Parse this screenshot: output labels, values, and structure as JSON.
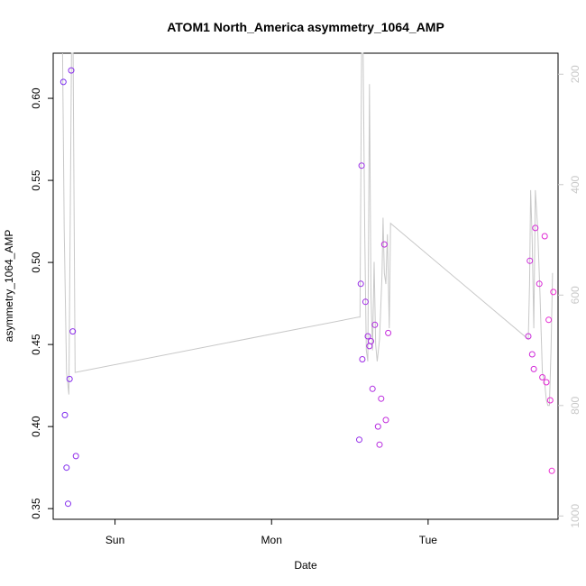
{
  "chart_data": {
    "type": "scatter",
    "title": "ATOM1 North_America asymmetry_1064_AMP",
    "xlabel": "Date",
    "ylabel": "asymmetry_1064_AMP",
    "xlim": [
      -0.395,
      2.83
    ],
    "ylim": [
      0.3435,
      0.6275
    ],
    "x_ticks": [
      {
        "value": 0,
        "label": "Sun"
      },
      {
        "value": 1,
        "label": "Mon"
      },
      {
        "value": 2,
        "label": "Tue"
      }
    ],
    "y_ticks": [
      0.35,
      0.4,
      0.45,
      0.5,
      0.55,
      0.6
    ],
    "y_tick_labels": [
      "0.35",
      "0.40",
      "0.45",
      "0.50",
      "0.55",
      "0.60"
    ],
    "y2_ticks": [
      200,
      400,
      600,
      800,
      1000
    ],
    "y2_tick_labels": [
      "200",
      "400",
      "600",
      "800",
      "1000"
    ],
    "y2_lim": [
      1006,
      162
    ],
    "grid": false,
    "point_color_start": "#7a2df0",
    "point_color_end": "#f02ad0",
    "line_color": "#c8c8c8",
    "series": [
      {
        "marker": "circle",
        "points": [
          {
            "x": -0.33,
            "y": 0.61
          },
          {
            "x": -0.32,
            "y": 0.407
          },
          {
            "x": -0.31,
            "y": 0.375
          },
          {
            "x": -0.3,
            "y": 0.353
          },
          {
            "x": -0.29,
            "y": 0.429
          },
          {
            "x": -0.28,
            "y": 0.617
          },
          {
            "x": -0.27,
            "y": 0.458
          },
          {
            "x": -0.25,
            "y": 0.382
          },
          {
            "x": 1.56,
            "y": 0.392
          },
          {
            "x": 1.57,
            "y": 0.487
          },
          {
            "x": 1.575,
            "y": 0.559
          },
          {
            "x": 1.58,
            "y": 0.441
          },
          {
            "x": 1.6,
            "y": 0.476
          },
          {
            "x": 1.615,
            "y": 0.455
          },
          {
            "x": 1.625,
            "y": 0.449
          },
          {
            "x": 1.635,
            "y": 0.452
          },
          {
            "x": 1.645,
            "y": 0.423
          },
          {
            "x": 1.66,
            "y": 0.462
          },
          {
            "x": 1.68,
            "y": 0.4
          },
          {
            "x": 1.69,
            "y": 0.389
          },
          {
            "x": 1.7,
            "y": 0.417
          },
          {
            "x": 1.72,
            "y": 0.511
          },
          {
            "x": 1.73,
            "y": 0.404
          },
          {
            "x": 1.745,
            "y": 0.457
          },
          {
            "x": 2.64,
            "y": 0.455
          },
          {
            "x": 2.65,
            "y": 0.501
          },
          {
            "x": 2.665,
            "y": 0.444
          },
          {
            "x": 2.675,
            "y": 0.435
          },
          {
            "x": 2.685,
            "y": 0.521
          },
          {
            "x": 2.71,
            "y": 0.487
          },
          {
            "x": 2.73,
            "y": 0.43
          },
          {
            "x": 2.745,
            "y": 0.516
          },
          {
            "x": 2.755,
            "y": 0.427
          },
          {
            "x": 2.77,
            "y": 0.465
          },
          {
            "x": 2.78,
            "y": 0.416
          },
          {
            "x": 2.79,
            "y": 0.373
          },
          {
            "x": 2.8,
            "y": 0.482
          }
        ]
      },
      {
        "type": "line",
        "axis": "right",
        "points": [
          {
            "x": -0.335,
            "y": 162
          },
          {
            "x": -0.325,
            "y": 480
          },
          {
            "x": -0.31,
            "y": 740
          },
          {
            "x": -0.295,
            "y": 780
          },
          {
            "x": -0.285,
            "y": 420
          },
          {
            "x": -0.278,
            "y": 162
          },
          {
            "x": -0.268,
            "y": 162
          },
          {
            "x": -0.255,
            "y": 740
          },
          {
            "x": 1.555,
            "y": 640
          },
          {
            "x": 1.565,
            "y": 640
          },
          {
            "x": 1.575,
            "y": 162
          },
          {
            "x": 1.585,
            "y": 162
          },
          {
            "x": 1.595,
            "y": 490
          },
          {
            "x": 1.605,
            "y": 700
          },
          {
            "x": 1.615,
            "y": 720
          },
          {
            "x": 1.625,
            "y": 218
          },
          {
            "x": 1.635,
            "y": 600
          },
          {
            "x": 1.645,
            "y": 700
          },
          {
            "x": 1.655,
            "y": 540
          },
          {
            "x": 1.665,
            "y": 690
          },
          {
            "x": 1.675,
            "y": 720
          },
          {
            "x": 1.69,
            "y": 680
          },
          {
            "x": 1.705,
            "y": 565
          },
          {
            "x": 1.712,
            "y": 460
          },
          {
            "x": 1.72,
            "y": 560
          },
          {
            "x": 1.73,
            "y": 580
          },
          {
            "x": 1.74,
            "y": 490
          },
          {
            "x": 1.752,
            "y": 660
          },
          {
            "x": 1.76,
            "y": 470
          },
          {
            "x": 2.64,
            "y": 680
          },
          {
            "x": 2.648,
            "y": 580
          },
          {
            "x": 2.655,
            "y": 410
          },
          {
            "x": 2.665,
            "y": 500
          },
          {
            "x": 2.675,
            "y": 660
          },
          {
            "x": 2.685,
            "y": 410
          },
          {
            "x": 2.7,
            "y": 480
          },
          {
            "x": 2.715,
            "y": 600
          },
          {
            "x": 2.73,
            "y": 740
          },
          {
            "x": 2.745,
            "y": 760
          },
          {
            "x": 2.755,
            "y": 790
          },
          {
            "x": 2.765,
            "y": 800
          },
          {
            "x": 2.775,
            "y": 800
          },
          {
            "x": 2.785,
            "y": 700
          },
          {
            "x": 2.795,
            "y": 560
          }
        ]
      }
    ]
  }
}
